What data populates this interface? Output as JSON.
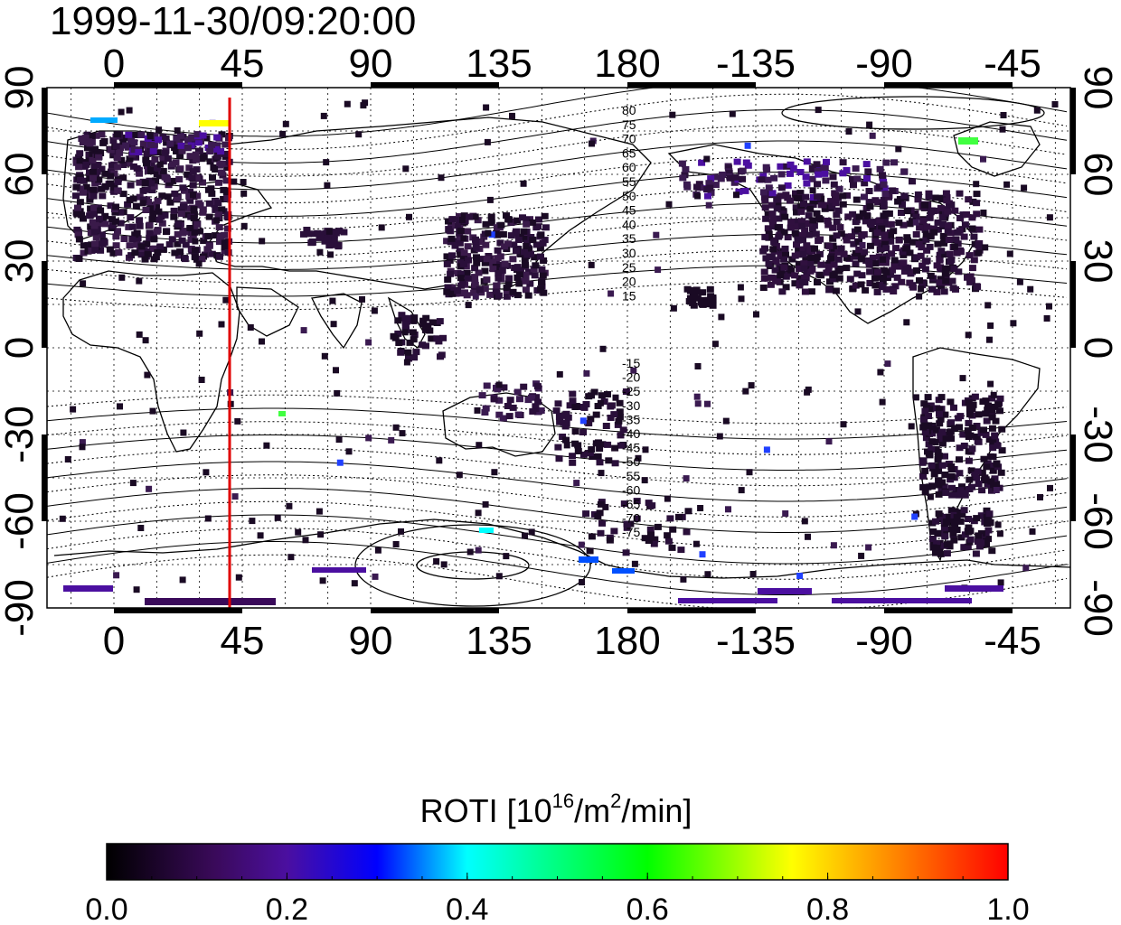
{
  "title": "1999-11-30/09:20:00",
  "map": {
    "top_lon_ticks": [
      "0",
      "45",
      "90",
      "135",
      "180",
      "-135",
      "-90",
      "-45"
    ],
    "bottom_lon_ticks": [
      "0",
      "45",
      "90",
      "135",
      "180",
      "-135",
      "-90",
      "-45"
    ],
    "left_lat_ticks": [
      "90",
      "60",
      "30",
      "0",
      "-30",
      "-60",
      "-90"
    ],
    "right_lat_ticks": [
      "90",
      "60",
      "30",
      "0",
      "-30",
      "-60",
      "-90"
    ],
    "contour_labels_north": [
      "80",
      "75",
      "70",
      "65",
      "60",
      "55",
      "50",
      "45",
      "40",
      "35",
      "30",
      "25",
      "20",
      "15"
    ],
    "contour_labels_south": [
      "-15",
      "-20",
      "-25",
      "-30",
      "-35",
      "-40",
      "-45",
      "-50",
      "-55",
      "-60",
      "-65",
      "-70",
      "-75"
    ],
    "marker_line": {
      "longitude": 42,
      "color": "#e00000"
    }
  },
  "colorbar": {
    "label_main": "ROTI  [10",
    "label_sup1": "16",
    "label_mid": "/m",
    "label_sup2": "2",
    "label_end": "/min]",
    "ticks": [
      "0.0",
      "0.2",
      "0.4",
      "0.6",
      "0.8",
      "1.0"
    ],
    "range": [
      0.0,
      1.0
    ],
    "colors": [
      "#000000",
      "#3a0a5a",
      "#4b0fa0",
      "#0000ff",
      "#00ffff",
      "#00ff00",
      "#ffff00",
      "#ff8000",
      "#ff0000"
    ]
  }
}
